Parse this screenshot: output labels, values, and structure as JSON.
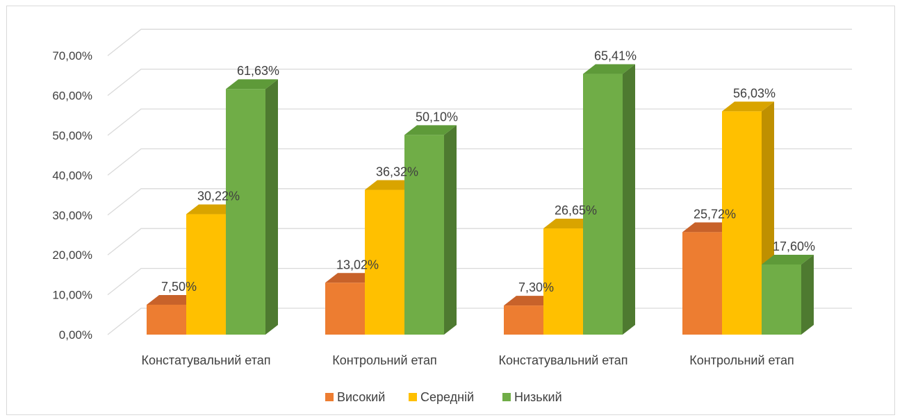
{
  "chart_data": {
    "type": "bar",
    "categories": [
      "Констатувальний етап",
      "Контрольний етап",
      "Констатувальний етап",
      "Контрольний етап"
    ],
    "series": [
      {
        "name": "Високий",
        "values": [
          7.5,
          13.02,
          7.3,
          25.72
        ],
        "labels": [
          "7,50%",
          "13,02%",
          "7,30%",
          "25,72%"
        ],
        "color": "#ed7d31",
        "side_color": "#b85a1f",
        "top_color": "#c8622a"
      },
      {
        "name": "Середній",
        "values": [
          30.22,
          36.32,
          26.65,
          56.03
        ],
        "labels": [
          "30,22%",
          "36,32%",
          "26,65%",
          "56,03%"
        ],
        "color": "#ffc000",
        "side_color": "#bf9000",
        "top_color": "#d9a400"
      },
      {
        "name": "Низький",
        "values": [
          61.63,
          50.1,
          65.41,
          17.6
        ],
        "labels": [
          "61,63%",
          "50,10%",
          "65,41%",
          "17,60%"
        ],
        "color": "#70ad47",
        "side_color": "#4e7a30",
        "top_color": "#5e9a39"
      }
    ],
    "y_ticks": [
      "0,00%",
      "10,00%",
      "20,00%",
      "30,00%",
      "40,00%",
      "50,00%",
      "60,00%",
      "70,00%"
    ],
    "ylim": [
      0,
      70
    ],
    "grid": true,
    "legend_position": "bottom",
    "bar_style": "3d-clustered-column"
  }
}
